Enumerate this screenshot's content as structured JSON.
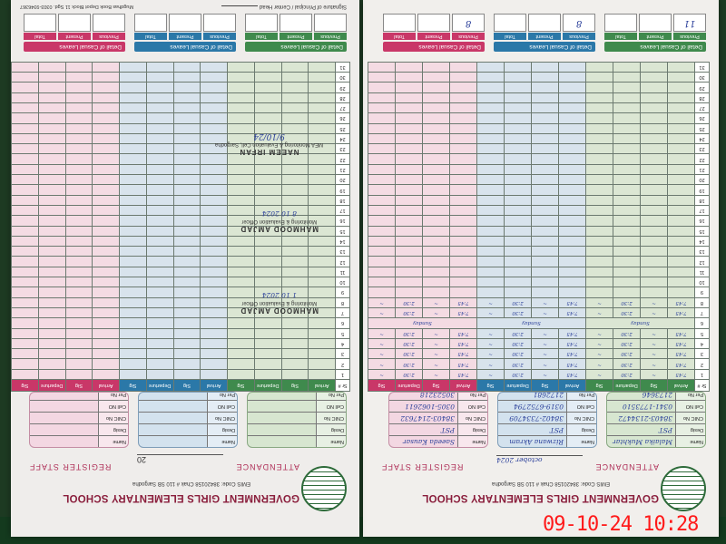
{
  "photo_timestamp": "09-10-24 10:28",
  "colors": {
    "green": "#3f8a4d",
    "blue": "#2b78a8",
    "pink": "#c93768",
    "timestamp": "#ff1a1a"
  },
  "left_page": {
    "school": "GOVERNMENT GIRLS ELEMENTARY   SCHOOL",
    "codes": "EMIS Code: 38420158   Chak # 110 SB  Sargodha",
    "attendance": "ATTENDANCE",
    "month_year": "october 2024",
    "register": "REGISTER STAFF",
    "staff": [
      {
        "name": "Malaika Mukhtar",
        "desig": "PST",
        "cnic": "38403-2134472",
        "cell": "0341-1773510",
        "per": "2173646"
      },
      {
        "name": "Rizwana Akram",
        "desig": "PST",
        "cnic": "38402-7334709",
        "cell": "0319-6752794",
        "per": "2172681"
      },
      {
        "name": "Saeeda Kausar",
        "desig": "PST",
        "cnic": "38403-2147632",
        "cell": "0305-1062611",
        "per": "30523218"
      }
    ],
    "labels": {
      "name": "Name",
      "desig": "Desig",
      "cnic": "CNIC No",
      "cell": "Cell NO",
      "per": "Per No"
    },
    "leaves": [
      {
        "title": "Detail of Casual Leaves",
        "previous": "11",
        "present": "",
        "total": ""
      },
      {
        "title": "Detail of Casual Leaves",
        "previous": "8",
        "present": "",
        "total": ""
      },
      {
        "title": "Detail of Casual Leaves",
        "previous": "8",
        "present": "",
        "total": ""
      }
    ]
  },
  "right_page": {
    "school": "GOVERNMENT GIRLS ELEMENTARY   SCHOOL",
    "codes": "EMIS Code: 38420158   Chak # 110 SB  Sargodha",
    "attendance": "ATTENDANCE",
    "month_year": "20",
    "register": "REGISTER STAFF",
    "labels": {
      "name": "Name",
      "desig": "Desig",
      "cnic": "CNIC No",
      "cell": "Cell NO",
      "per": "Per No"
    },
    "leaves": [
      {
        "title": "Detail of Casual Leaves",
        "previous": "",
        "present": "",
        "total": ""
      },
      {
        "title": "Detail of Casual Leaves",
        "previous": "",
        "present": "",
        "total": ""
      },
      {
        "title": "Detail of Casual Leaves",
        "previous": "",
        "present": "",
        "total": ""
      }
    ],
    "signature_label": "Signature of Principal / Center Head",
    "printer": "Mugdhas Book Depot Block 11 Sgd. 0303-9346367",
    "stamps": [
      {
        "name": "MAHMOOD AMJAD",
        "title": "Monitoring & Evaluation Officer",
        "date": "1 10 2024"
      },
      {
        "name": "MAHMOOD AMJAD",
        "title": "Monitoring & Evaluation Officer",
        "date": "8 10 2024"
      },
      {
        "name": "NAEEM IRFAN",
        "title": "MEA  Monitoring & Evaluation Cell, Sargodha",
        "date": "9/10/24"
      }
    ]
  },
  "table": {
    "headers": [
      "Sr #",
      "Arrival",
      "Sig",
      "Departure",
      "Sig"
    ],
    "leave_headers": {
      "previous": "Previous",
      "present": "Present",
      "total": "Total"
    },
    "rows": [
      "1",
      "2",
      "3",
      "4",
      "5",
      "6",
      "7",
      "8",
      "9",
      "10",
      "11",
      "12",
      "13",
      "14",
      "15",
      "16",
      "17",
      "18",
      "19",
      "20",
      "21",
      "22",
      "23",
      "24",
      "25",
      "26",
      "27",
      "28",
      "29",
      "30",
      "31"
    ],
    "entries": [
      {
        "row": 1,
        "arrival": "7:45",
        "departure": "2:30"
      },
      {
        "row": 2,
        "arrival": "7:45",
        "departure": "2:30"
      },
      {
        "row": 3,
        "arrival": "7:45",
        "departure": "2:30"
      },
      {
        "row": 4,
        "arrival": "7:45",
        "departure": "2:30"
      },
      {
        "row": 5,
        "arrival": "7:45",
        "departure": "2:30"
      },
      {
        "row": 6,
        "note": "Sunday"
      },
      {
        "row": 7,
        "arrival": "7:45",
        "departure": "2:30"
      },
      {
        "row": 8,
        "arrival": "7:45",
        "departure": "2:30"
      }
    ],
    "later_notes": [
      {
        "row": 13,
        "note": "Sunday"
      }
    ]
  }
}
